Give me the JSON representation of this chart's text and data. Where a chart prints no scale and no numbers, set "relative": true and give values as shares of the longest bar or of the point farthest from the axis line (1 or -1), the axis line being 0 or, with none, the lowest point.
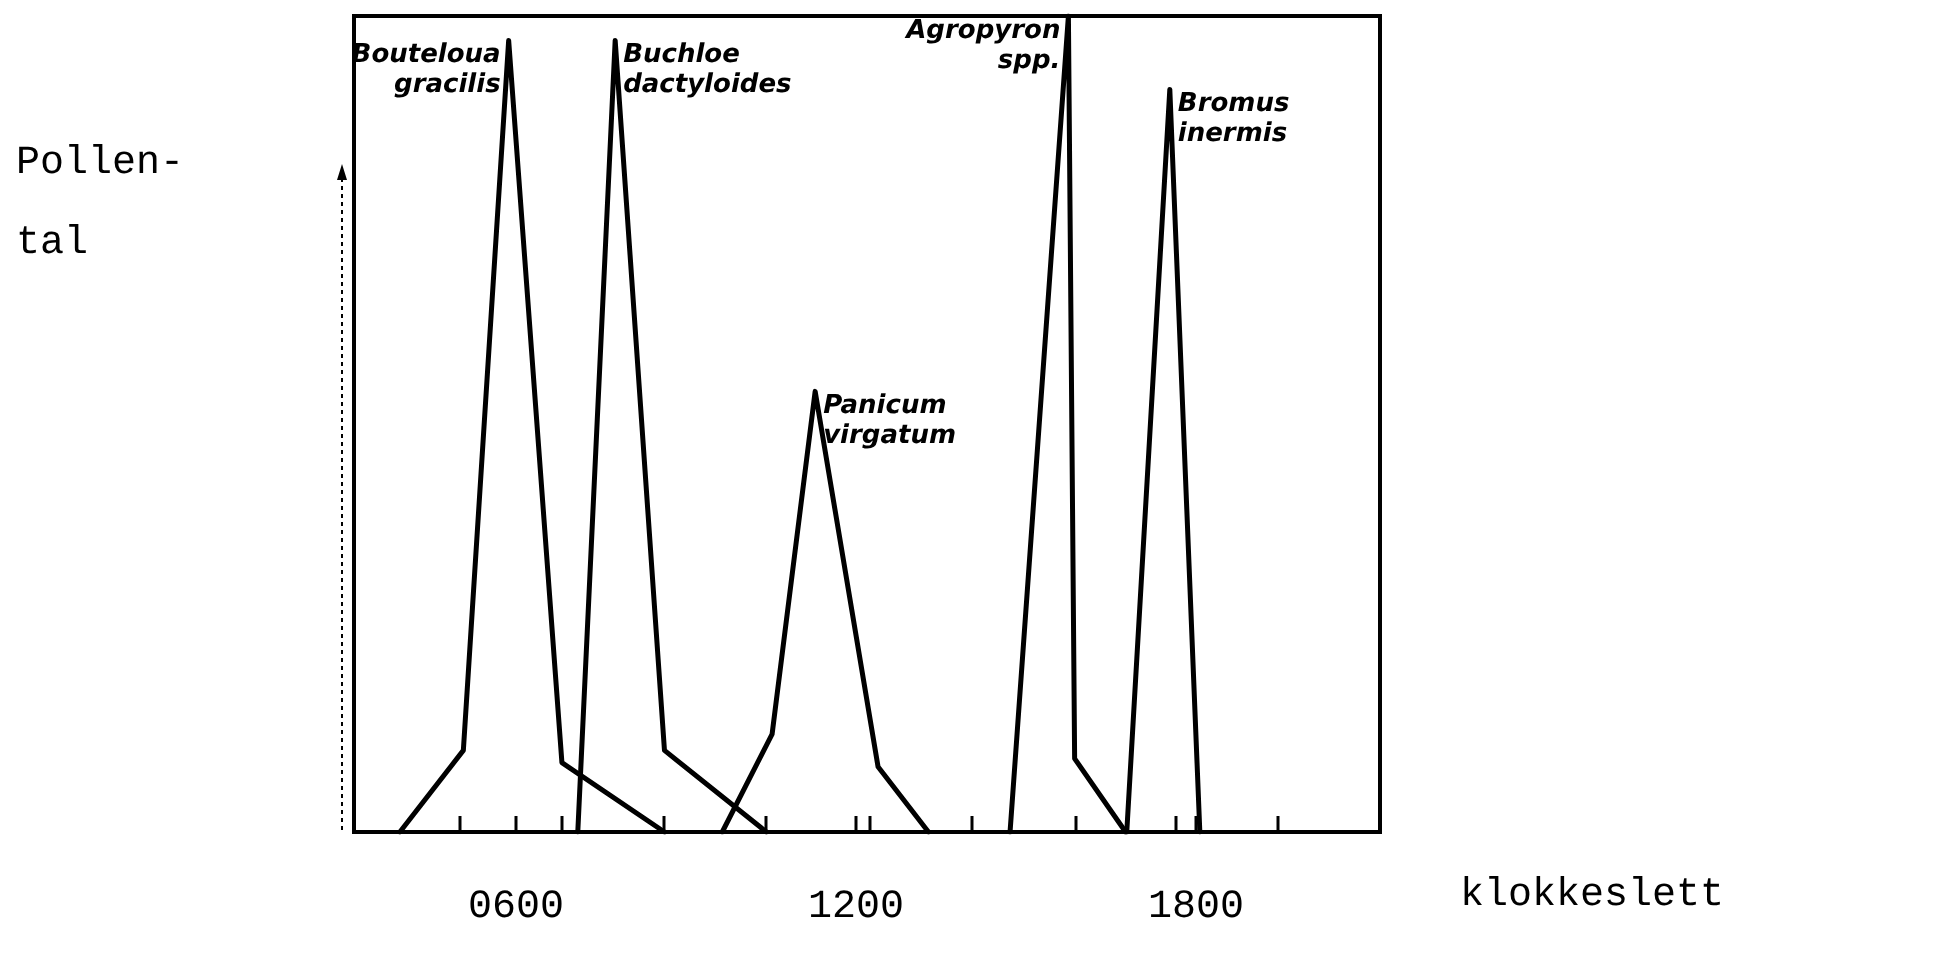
{
  "chart_data": {
    "type": "line",
    "relative": true,
    "xlabel": "klokkeslett",
    "ylabel": "Pollen-\ntal",
    "xlim": [
      314,
      2125
    ],
    "xticks": [
      {
        "value": 501,
        "label": null
      },
      {
        "value": 600,
        "label": "0600"
      },
      {
        "value": 681,
        "label": null
      },
      {
        "value": 861,
        "label": null
      },
      {
        "value": 1041,
        "label": null
      },
      {
        "value": 1200,
        "label": "1200"
      },
      {
        "value": 1225,
        "label": null
      },
      {
        "value": 1405,
        "label": null
      },
      {
        "value": 1588,
        "label": null
      },
      {
        "value": 1765,
        "label": null
      },
      {
        "value": 1800,
        "label": "1800"
      },
      {
        "value": 1945,
        "label": null
      }
    ],
    "grid": false,
    "legend": false,
    "marker": "none",
    "line_style": "solid",
    "series": [
      {
        "name": "Bouteloua\ngracilis",
        "color": "#000000",
        "x": [
          395,
          507,
          587,
          681,
          862
        ],
        "values": [
          0,
          0.1,
          0.97,
          0.085,
          0
        ]
      },
      {
        "name": "Buchloe\ndactyloides",
        "color": "#000000",
        "x": [
          709,
          775,
          862,
          1042
        ],
        "values": [
          0,
          0.97,
          0.1,
          0
        ]
      },
      {
        "name": "Panicum\nvirgatum",
        "color": "#000000",
        "x": [
          964,
          1052,
          1128,
          1239,
          1328
        ],
        "values": [
          0,
          0.12,
          0.54,
          0.08,
          0
        ]
      },
      {
        "name": "Agropyron\nspp.",
        "color": "#000000",
        "x": [
          1472,
          1575,
          1586,
          1676
        ],
        "values": [
          0,
          1,
          0.09,
          0
        ]
      },
      {
        "name": "Bromus\ninermis",
        "color": "#000000",
        "x": [
          1678,
          1754,
          1807
        ],
        "values": [
          0,
          0.91,
          0
        ]
      }
    ]
  }
}
